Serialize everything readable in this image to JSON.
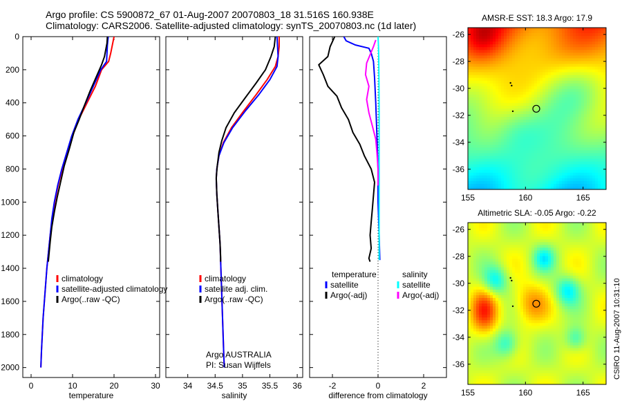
{
  "header": {
    "line1": "Argo profile: CS 5900872_67 01-Aug-2007 20070803_18 31.516S 160.938E",
    "line2": "Climatology: CARS2006. Satellite-adjusted climatology: synTS_20070803.nc (1d later)"
  },
  "stamp": "CSIRO 11-Aug-2007 10:31:10",
  "colors": {
    "red": "#ff0000",
    "blue": "#0000ff",
    "black": "#000000",
    "cyan": "#00ffff",
    "magenta": "#ff00ff"
  },
  "depth_ticks": [
    "0",
    "200",
    "400",
    "600",
    "800",
    "1000",
    "1200",
    "1400",
    "1600",
    "1800",
    "2000"
  ],
  "chart_data": [
    {
      "type": "line",
      "id": "temperature",
      "xlabel": "temperature",
      "xlim": [
        -2,
        31
      ],
      "ylim": [
        0,
        2060
      ],
      "yreversed": true,
      "xticks": [
        "0",
        "10",
        "20",
        "30"
      ],
      "legend": {
        "placement": "lower-right",
        "entries": [
          "climatology",
          "satellite-adjusted climatology",
          "Argo(..raw -QC)"
        ]
      },
      "series": [
        {
          "name": "climatology",
          "color": "red",
          "points": [
            [
              20.0,
              0
            ],
            [
              19.6,
              50
            ],
            [
              19.2,
              100
            ],
            [
              18.7,
              150
            ],
            [
              17.0,
              200
            ],
            [
              15.5,
              300
            ],
            [
              13.5,
              400
            ],
            [
              11.5,
              500
            ],
            [
              10.0,
              600
            ],
            [
              8.8,
              700
            ],
            [
              7.5,
              800
            ],
            [
              6.5,
              900
            ],
            [
              5.7,
              1000
            ],
            [
              5.1,
              1100
            ],
            [
              4.6,
              1200
            ],
            [
              4.2,
              1300
            ],
            [
              3.8,
              1400
            ],
            [
              3.5,
              1500
            ],
            [
              3.2,
              1600
            ],
            [
              2.9,
              1700
            ],
            [
              2.7,
              1800
            ],
            [
              2.5,
              1900
            ],
            [
              2.35,
              2000
            ]
          ]
        },
        {
          "name": "satellite-adjusted climatology",
          "color": "blue",
          "points": [
            [
              18.6,
              0
            ],
            [
              18.4,
              50
            ],
            [
              18.3,
              100
            ],
            [
              18.2,
              150
            ],
            [
              16.8,
              200
            ],
            [
              15.0,
              300
            ],
            [
              13.2,
              400
            ],
            [
              11.3,
              500
            ],
            [
              9.8,
              600
            ],
            [
              8.6,
              700
            ],
            [
              7.4,
              800
            ],
            [
              6.4,
              900
            ],
            [
              5.6,
              1000
            ],
            [
              5.0,
              1100
            ],
            [
              4.6,
              1200
            ],
            [
              4.2,
              1300
            ],
            [
              3.8,
              1400
            ],
            [
              3.5,
              1500
            ],
            [
              3.2,
              1600
            ],
            [
              2.9,
              1700
            ],
            [
              2.7,
              1800
            ],
            [
              2.5,
              1900
            ],
            [
              2.35,
              2000
            ]
          ]
        },
        {
          "name": "Argo(..raw -QC)",
          "color": "black",
          "points": [
            [
              18.4,
              0
            ],
            [
              18.3,
              40
            ],
            [
              18.0,
              80
            ],
            [
              17.7,
              120
            ],
            [
              17.0,
              170
            ],
            [
              15.6,
              250
            ],
            [
              14.2,
              330
            ],
            [
              12.8,
              420
            ],
            [
              11.6,
              500
            ],
            [
              10.3,
              580
            ],
            [
              9.2,
              680
            ],
            [
              8.0,
              780
            ],
            [
              7.1,
              880
            ],
            [
              6.3,
              970
            ],
            [
              5.6,
              1060
            ],
            [
              5.0,
              1150
            ],
            [
              4.6,
              1240
            ],
            [
              4.3,
              1320
            ],
            [
              4.15,
              1360
            ]
          ]
        }
      ]
    },
    {
      "type": "line",
      "id": "salinity",
      "xlabel": "salinity",
      "xlim": [
        33.6,
        36.1
      ],
      "ylim": [
        0,
        2060
      ],
      "yreversed": true,
      "xticks": [
        "34",
        "34.5",
        "35",
        "35.5",
        "36"
      ],
      "annotation": {
        "line1": "Argo AUSTRALIA",
        "line2": "PI: Susan Wijffels"
      },
      "legend": {
        "placement": "lower-right",
        "entries": [
          "climatology",
          "satellite adj. clim.",
          "Argo(..raw -QC)"
        ]
      },
      "series": [
        {
          "name": "climatology",
          "color": "red",
          "points": [
            [
              35.67,
              0
            ],
            [
              35.67,
              60
            ],
            [
              35.65,
              120
            ],
            [
              35.6,
              180
            ],
            [
              35.45,
              260
            ],
            [
              35.25,
              350
            ],
            [
              35.02,
              450
            ],
            [
              34.8,
              550
            ],
            [
              34.65,
              640
            ],
            [
              34.57,
              720
            ],
            [
              34.53,
              800
            ],
            [
              34.52,
              860
            ],
            [
              34.53,
              950
            ],
            [
              34.55,
              1050
            ],
            [
              34.57,
              1150
            ],
            [
              34.59,
              1250
            ],
            [
              34.6,
              1350
            ],
            [
              34.61,
              1450
            ],
            [
              34.62,
              1550
            ],
            [
              34.63,
              1650
            ],
            [
              34.64,
              1750
            ],
            [
              34.65,
              1850
            ],
            [
              34.66,
              1950
            ],
            [
              34.67,
              2000
            ]
          ]
        },
        {
          "name": "satellite adj. clim.",
          "color": "blue",
          "points": [
            [
              35.63,
              0
            ],
            [
              35.64,
              60
            ],
            [
              35.65,
              120
            ],
            [
              35.63,
              180
            ],
            [
              35.5,
              260
            ],
            [
              35.3,
              350
            ],
            [
              35.05,
              450
            ],
            [
              34.82,
              550
            ],
            [
              34.66,
              640
            ],
            [
              34.57,
              720
            ],
            [
              34.53,
              800
            ],
            [
              34.52,
              860
            ],
            [
              34.53,
              950
            ],
            [
              34.55,
              1050
            ],
            [
              34.57,
              1150
            ],
            [
              34.59,
              1250
            ],
            [
              34.6,
              1350
            ],
            [
              34.61,
              1450
            ],
            [
              34.62,
              1550
            ],
            [
              34.63,
              1650
            ],
            [
              34.64,
              1750
            ],
            [
              34.65,
              1850
            ],
            [
              34.66,
              1950
            ],
            [
              34.67,
              2000
            ]
          ]
        },
        {
          "name": "Argo(..raw -QC)",
          "color": "black",
          "points": [
            [
              35.6,
              0
            ],
            [
              35.58,
              60
            ],
            [
              35.52,
              120
            ],
            [
              35.42,
              200
            ],
            [
              35.25,
              280
            ],
            [
              35.05,
              370
            ],
            [
              34.85,
              460
            ],
            [
              34.7,
              550
            ],
            [
              34.62,
              630
            ],
            [
              34.57,
              700
            ],
            [
              34.54,
              780
            ],
            [
              34.52,
              850
            ],
            [
              34.53,
              950
            ],
            [
              34.55,
              1050
            ],
            [
              34.57,
              1150
            ],
            [
              34.59,
              1250
            ],
            [
              34.6,
              1330
            ],
            [
              34.6,
              1360
            ]
          ]
        }
      ]
    },
    {
      "type": "line",
      "id": "difference",
      "xlabel": "difference from climatology",
      "xlim": [
        -3.0,
        3.0
      ],
      "ylim": [
        0,
        2060
      ],
      "yreversed": true,
      "xticks": [
        "-2",
        "0",
        "2"
      ],
      "zero_line": true,
      "legend": {
        "placement": "lower-center",
        "left_title": "temperature",
        "left_entries": [
          "satellite",
          "Argo(-adj)"
        ],
        "right_title": "salinity",
        "right_entries": [
          "satellite",
          "Argo(-adj)"
        ]
      },
      "series": [
        {
          "name": "temperature satellite",
          "color": "blue",
          "points": [
            [
              -1.5,
              0
            ],
            [
              -1.4,
              25
            ],
            [
              -1.0,
              50
            ],
            [
              -0.4,
              70
            ],
            [
              -0.3,
              100
            ],
            [
              -0.2,
              150
            ],
            [
              -0.15,
              250
            ],
            [
              -0.1,
              400
            ],
            [
              -0.05,
              600
            ],
            [
              0.0,
              800
            ],
            [
              0.0,
              1000
            ],
            [
              0.05,
              1200
            ],
            [
              0.08,
              1350
            ]
          ]
        },
        {
          "name": "temperature Argo(-adj)",
          "color": "black",
          "points": [
            [
              -1.9,
              0
            ],
            [
              -2.1,
              60
            ],
            [
              -2.2,
              120
            ],
            [
              -2.6,
              170
            ],
            [
              -2.4,
              230
            ],
            [
              -2.2,
              300
            ],
            [
              -1.8,
              360
            ],
            [
              -1.6,
              430
            ],
            [
              -1.3,
              500
            ],
            [
              -1.1,
              580
            ],
            [
              -0.8,
              650
            ],
            [
              -0.6,
              720
            ],
            [
              -0.3,
              800
            ],
            [
              -0.15,
              880
            ],
            [
              -0.2,
              960
            ],
            [
              -0.25,
              1040
            ],
            [
              -0.3,
              1120
            ],
            [
              -0.35,
              1200
            ],
            [
              -0.3,
              1280
            ],
            [
              -0.4,
              1340
            ],
            [
              -0.35,
              1360
            ]
          ]
        },
        {
          "name": "salinity satellite",
          "color": "cyan",
          "points": [
            [
              0.0,
              0
            ],
            [
              0.02,
              60
            ],
            [
              0.03,
              120
            ],
            [
              0.04,
              250
            ],
            [
              0.05,
              450
            ],
            [
              0.05,
              700
            ],
            [
              0.05,
              900
            ],
            [
              0.05,
              1100
            ],
            [
              0.05,
              1350
            ]
          ]
        },
        {
          "name": "salinity Argo(-adj)",
          "color": "magenta",
          "points": [
            [
              -0.1,
              20
            ],
            [
              -0.2,
              60
            ],
            [
              -0.35,
              110
            ],
            [
              -0.5,
              160
            ],
            [
              -0.55,
              230
            ],
            [
              -0.4,
              300
            ],
            [
              -0.5,
              380
            ],
            [
              -0.4,
              460
            ],
            [
              -0.25,
              540
            ],
            [
              -0.1,
              620
            ],
            [
              -0.05,
              700
            ],
            [
              0.0,
              800
            ],
            [
              0.0,
              900
            ]
          ]
        }
      ]
    },
    {
      "type": "heatmap",
      "id": "sst_map",
      "title": "AMSR-E SST: 18.3 Argo: 17.9",
      "xlim": [
        155,
        167
      ],
      "ylim": [
        -37.5,
        -25.5
      ],
      "xticks": [
        "155",
        "160",
        "165"
      ],
      "yticks": [
        "-26",
        "-28",
        "-30",
        "-32",
        "-34",
        "-36"
      ],
      "marker": {
        "lon": 160.938,
        "lat": -31.516
      },
      "track_points": [
        [
          158.7,
          -29.6
        ],
        [
          158.8,
          -29.8
        ],
        [
          158.9,
          -31.7
        ]
      ]
    },
    {
      "type": "heatmap",
      "id": "sla_map",
      "title": "Altimetric SLA: -0.05 Argo: -0.22",
      "xlim": [
        155,
        167
      ],
      "ylim": [
        -37.5,
        -25.5
      ],
      "xticks": [
        "155",
        "160",
        "165"
      ],
      "yticks": [
        "-26",
        "-28",
        "-30",
        "-32",
        "-34",
        "-36"
      ],
      "marker": {
        "lon": 160.938,
        "lat": -31.516
      },
      "track_points": [
        [
          158.7,
          -29.6
        ],
        [
          158.8,
          -29.8
        ],
        [
          158.9,
          -31.7
        ]
      ]
    }
  ]
}
